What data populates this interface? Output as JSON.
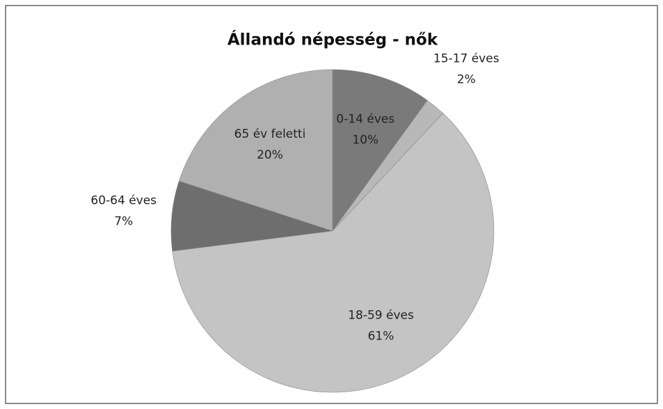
{
  "chart_data": {
    "type": "pie",
    "title": "Állandó népesség - nők",
    "categories": [
      "0-14 éves",
      "15-17 éves",
      "18-59 éves",
      "60-64 éves",
      "65 év feletti"
    ],
    "values": [
      10,
      2,
      61,
      7,
      20
    ],
    "value_labels": [
      "10%",
      "2%",
      "61%",
      "7%",
      "20%"
    ],
    "colors": [
      "#7a7a7a",
      "#b8b8b8",
      "#c4c4c4",
      "#6e6e6e",
      "#b0b0b0"
    ]
  }
}
